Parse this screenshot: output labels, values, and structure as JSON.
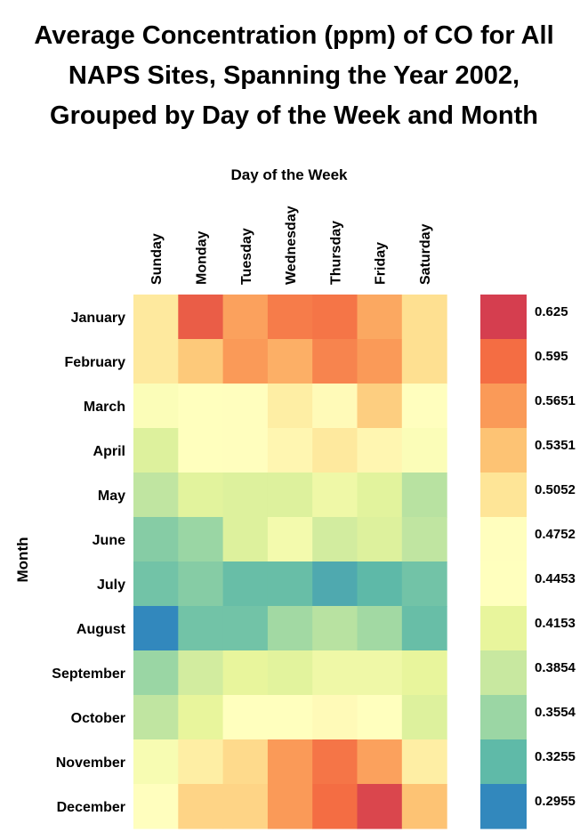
{
  "title_lines": [
    "Average Concentration (ppm) of CO for All",
    "NAPS Sites, Spanning the Year 2002,",
    "Grouped by Day of the Week and Month"
  ],
  "chart_data": {
    "type": "heatmap",
    "title": "Average Concentration (ppm) of CO for All NAPS Sites, Spanning the Year 2002, Grouped by Day of the Week and Month",
    "xlabel": "Day of the Week",
    "ylabel": "Month",
    "x": [
      "Sunday",
      "Monday",
      "Tuesday",
      "Wednesday",
      "Thursday",
      "Friday",
      "Saturday"
    ],
    "y": [
      "January",
      "February",
      "March",
      "April",
      "May",
      "June",
      "July",
      "August",
      "September",
      "October",
      "November",
      "December"
    ],
    "values": [
      [
        0.5,
        0.605,
        0.56,
        0.585,
        0.59,
        0.555,
        0.51
      ],
      [
        0.5,
        0.53,
        0.565,
        0.55,
        0.58,
        0.565,
        0.51
      ],
      [
        0.44,
        0.46,
        0.465,
        0.495,
        0.48,
        0.525,
        0.475
      ],
      [
        0.405,
        0.46,
        0.465,
        0.485,
        0.5,
        0.485,
        0.44
      ],
      [
        0.38,
        0.41,
        0.405,
        0.405,
        0.425,
        0.41,
        0.375
      ],
      [
        0.345,
        0.355,
        0.405,
        0.43,
        0.395,
        0.405,
        0.38
      ],
      [
        0.335,
        0.345,
        0.33,
        0.33,
        0.315,
        0.325,
        0.335
      ],
      [
        0.295,
        0.335,
        0.335,
        0.36,
        0.375,
        0.36,
        0.33
      ],
      [
        0.355,
        0.395,
        0.415,
        0.41,
        0.425,
        0.425,
        0.415
      ],
      [
        0.38,
        0.415,
        0.455,
        0.46,
        0.48,
        0.445,
        0.405
      ],
      [
        0.435,
        0.495,
        0.515,
        0.565,
        0.59,
        0.56,
        0.495
      ],
      [
        0.465,
        0.52,
        0.52,
        0.565,
        0.595,
        0.62,
        0.535
      ]
    ],
    "colorbar": {
      "labels": [
        "0.625",
        "0.595",
        "0.5651",
        "0.5351",
        "0.5052",
        "0.4752",
        "0.4453",
        "0.4153",
        "0.3854",
        "0.3554",
        "0.3255",
        "0.2955"
      ],
      "values": [
        0.625,
        0.595,
        0.5651,
        0.5351,
        0.5052,
        0.4752,
        0.4453,
        0.4153,
        0.3854,
        0.3554,
        0.3255,
        0.2955
      ],
      "colors": [
        "#d53e4f",
        "#f46d43",
        "#fa9a58",
        "#fdc374",
        "#fee597",
        "#fffebe",
        "#ffffbe",
        "#e8f59c",
        "#c8e8a0",
        "#9bd6a4",
        "#5fbaa8",
        "#3288bd"
      ]
    },
    "grid": false,
    "legend_placement": "right"
  }
}
